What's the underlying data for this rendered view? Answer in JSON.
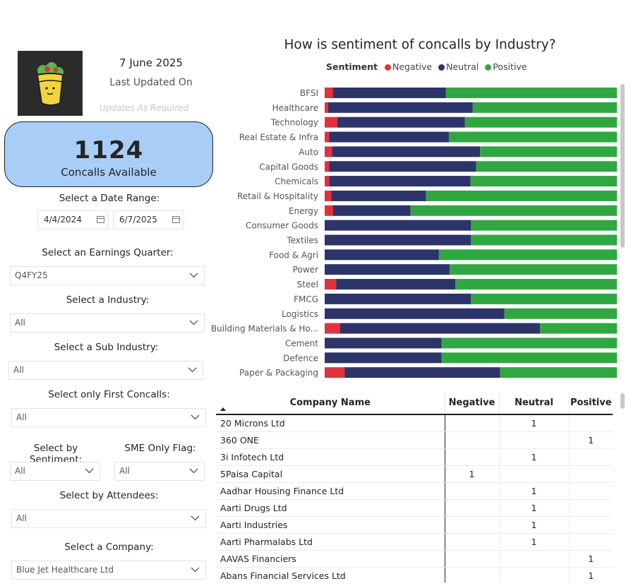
{
  "header": {
    "last_date": "7 June 2025",
    "last_updated_label": "Last Updated On",
    "update_note": "Updates As Required",
    "logo_icon": "wrap-burrito-icon"
  },
  "kpi": {
    "value": "1124",
    "label": "Concalls Available"
  },
  "filters": {
    "date_range_label": "Select a Date Range:",
    "date_start": "4/4/2024",
    "date_end": "6/7/2025",
    "quarter_label": "Select an Earnings Quarter:",
    "quarter_value": "Q4FY25",
    "industry_label": "Select a Industry:",
    "industry_value": "All",
    "sub_industry_label": "Select a Sub Industry:",
    "sub_industry_value": "All",
    "first_concalls_label": "Select only First Concalls:",
    "first_concalls_value": "All",
    "sentiment_label": "Select by Sentiment:",
    "sentiment_value": "All",
    "sme_label": "SME Only Flag:",
    "sme_value": "All",
    "attendees_label": "Select by Attendees:",
    "attendees_value": "All",
    "company_label": "Select a Company:",
    "company_value": "Blue Jet Healthcare Ltd"
  },
  "chart_data": {
    "type": "bar",
    "orientation": "horizontal-stacked-100",
    "title": "How is sentiment of concalls by Industry?",
    "legend_title": "Sentiment",
    "legend_position": "top",
    "colors": {
      "Negative": "#e0313d",
      "Neutral": "#2c3469",
      "Positive": "#31a741"
    },
    "categories": [
      "BFSI",
      "Healthcare",
      "Technology",
      "Real Estate & Infra",
      "Auto",
      "Capital Goods",
      "Chemicals",
      "Retail & Hospitality",
      "Energy",
      "Consumer Goods",
      "Textiles",
      "Food & Agri",
      "Power",
      "Steel",
      "FMCG",
      "Logistics",
      "Building Materials & Ho...",
      "Cement",
      "Defence",
      "Paper & Packaging"
    ],
    "series": [
      {
        "name": "Negative",
        "values": [
          2.8,
          1.2,
          4.3,
          1.5,
          2.5,
          1.5,
          1.5,
          2.3,
          2.9,
          0,
          0,
          0,
          0,
          3.9,
          0,
          0,
          5.3,
          0,
          0,
          6.8
        ]
      },
      {
        "name": "Neutral",
        "values": [
          38.7,
          49.4,
          43.7,
          41.0,
          50.7,
          50.3,
          48.4,
          32.4,
          26.5,
          50.0,
          50.0,
          39.1,
          42.8,
          40.8,
          50.0,
          61.5,
          68.4,
          40.0,
          40.0,
          53.2
        ]
      },
      {
        "name": "Positive",
        "values": [
          58.5,
          49.4,
          52.0,
          57.5,
          46.8,
          48.2,
          50.1,
          65.3,
          70.6,
          50.0,
          50.0,
          60.9,
          57.2,
          55.3,
          50.0,
          38.5,
          26.3,
          60.0,
          60.0,
          40.0
        ]
      }
    ],
    "xlim": [
      0,
      100
    ],
    "grid": false
  },
  "table": {
    "columns": [
      "Company Name",
      "Negative",
      "Neutral",
      "Positive"
    ],
    "rows": [
      {
        "name": "20 Microns Ltd",
        "neg": "",
        "neu": "1",
        "pos": ""
      },
      {
        "name": "360 ONE",
        "neg": "",
        "neu": "",
        "pos": "1"
      },
      {
        "name": "3i Infotech Ltd",
        "neg": "",
        "neu": "1",
        "pos": ""
      },
      {
        "name": "5Paisa Capital",
        "neg": "1",
        "neu": "",
        "pos": ""
      },
      {
        "name": "Aadhar Housing Finance Ltd",
        "neg": "",
        "neu": "1",
        "pos": ""
      },
      {
        "name": "Aarti Drugs Ltd",
        "neg": "",
        "neu": "1",
        "pos": ""
      },
      {
        "name": "Aarti Industries",
        "neg": "",
        "neu": "1",
        "pos": ""
      },
      {
        "name": "Aarti Pharmalabs Ltd",
        "neg": "",
        "neu": "1",
        "pos": ""
      },
      {
        "name": "AAVAS Financiers",
        "neg": "",
        "neu": "",
        "pos": "1"
      },
      {
        "name": "Abans Financial Services Ltd",
        "neg": "",
        "neu": "",
        "pos": "1"
      }
    ]
  }
}
